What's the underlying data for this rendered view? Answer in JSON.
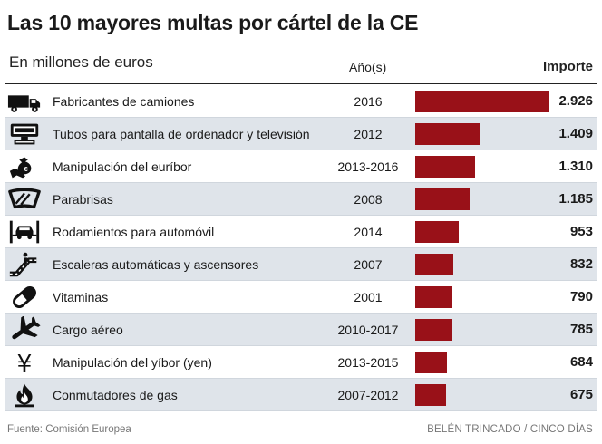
{
  "chart_data": {
    "type": "bar",
    "orientation": "horizontal",
    "title": "Las 10 mayores multas por cártel de la CE",
    "subtitle": "En millones de euros",
    "column_headers": {
      "year": "Año(s)",
      "amount": "Importe"
    },
    "categories": [
      "Fabricantes de camiones",
      "Tubos para pantalla de ordenador y televisión",
      "Manipulación del euríbor",
      "Parabrisas",
      "Rodamientos para automóvil",
      "Escaleras automáticas y ascensores",
      "Vitaminas",
      "Cargo aéreo",
      "Manipulación del yíbor (yen)",
      "Conmutadores de gas"
    ],
    "years": [
      "2016",
      "2012",
      "2013-2016",
      "2008",
      "2014",
      "2007",
      "2001",
      "2010-2017",
      "2013-2015",
      "2007-2012"
    ],
    "values": [
      2926,
      1409,
      1310,
      1185,
      953,
      832,
      790,
      785,
      684,
      675
    ],
    "value_labels": [
      "2.926",
      "1.409",
      "1.310",
      "1.185",
      "953",
      "832",
      "790",
      "785",
      "684",
      "675"
    ],
    "icons": [
      "truck-icon",
      "monitor-icon",
      "money-bag-hand-icon",
      "windshield-icon",
      "car-lift-icon",
      "escalator-icon",
      "pill-icon",
      "airplane-icon",
      "yen-icon",
      "gas-flame-icon"
    ],
    "xlim": [
      0,
      2926
    ],
    "bar_color": "#991118",
    "row_shade_color": "#dfe4ea",
    "grid": false,
    "legend": "none"
  },
  "footer": {
    "source": "Fuente: Comisión Europea",
    "credit": "BELÉN TRINCADO / CINCO DÍAS"
  }
}
